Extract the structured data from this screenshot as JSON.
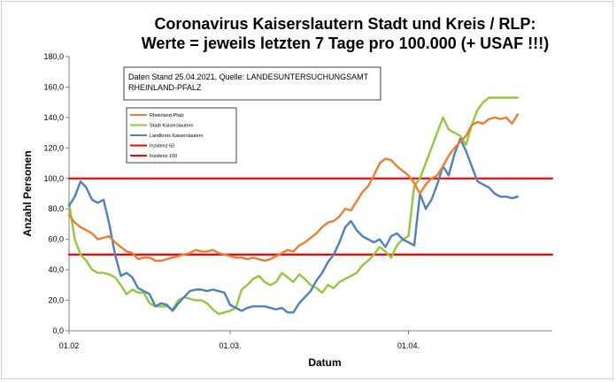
{
  "chart_data": {
    "type": "line",
    "title_lines": [
      "Coronavirus Kaiserslautern Stadt und Kreis / RLP:",
      "Werte = jeweils letzten 7 Tage pro 100.000 (+ USAF !!!)"
    ],
    "xlabel": "Datum",
    "ylabel": "Anzahl Personen",
    "ylim": [
      0,
      180
    ],
    "yticks": [
      "0,0",
      "20,0",
      "40,0",
      "60,0",
      "80,0",
      "100,0",
      "120,0",
      "140,0",
      "160,0",
      "180,0"
    ],
    "x_range_days": [
      0,
      84
    ],
    "xticks": [
      {
        "label": "01.02",
        "day": 0
      },
      {
        "label": "01.03.",
        "day": 28
      },
      {
        "label": "01.04.",
        "day": 59
      }
    ],
    "source_note_lines": [
      "Daten Stand 25.04.2021, Quelle: LANDESUNTERSUCHUNGSAMT",
      "RHEINLAND-PFALZ"
    ],
    "legend_position": "upper-left",
    "series": [
      {
        "name": "Rheinland-Pfalz",
        "color": "#ed7d31",
        "x": [
          0,
          1,
          2,
          3,
          4,
          5,
          6,
          7,
          8,
          9,
          10,
          11,
          12,
          13,
          14,
          15,
          16,
          17,
          18,
          19,
          20,
          21,
          22,
          23,
          24,
          25,
          26,
          27,
          28,
          29,
          30,
          31,
          32,
          33,
          34,
          35,
          36,
          37,
          38,
          39,
          40,
          41,
          42,
          43,
          44,
          45,
          46,
          47,
          48,
          49,
          50,
          51,
          52,
          53,
          54,
          55,
          56,
          57,
          58,
          59,
          60,
          61,
          62,
          63,
          64,
          65,
          66,
          67,
          68,
          69,
          70,
          71,
          72,
          73,
          74,
          75,
          76,
          77,
          78
        ],
        "y": [
          76,
          71,
          68,
          66,
          64,
          60,
          61,
          62,
          58,
          55,
          52,
          51,
          47,
          48,
          48,
          46,
          46,
          47,
          48,
          49,
          50,
          51,
          53,
          52,
          52,
          53,
          51,
          50,
          49,
          48,
          48,
          47,
          48,
          47,
          46,
          47,
          49,
          51,
          53,
          52,
          56,
          58,
          61,
          64,
          68,
          71,
          72,
          75,
          80,
          79,
          85,
          91,
          95,
          102,
          110,
          113,
          112,
          108,
          105,
          102,
          97,
          90,
          96,
          100,
          102,
          108,
          115,
          120,
          124,
          128,
          135,
          137,
          136,
          139,
          140,
          139,
          140,
          136,
          142
        ]
      },
      {
        "name": "Stadt Kaiserslautern",
        "color": "#92c83e",
        "x": [
          0,
          1,
          2,
          3,
          4,
          5,
          6,
          7,
          8,
          9,
          10,
          11,
          12,
          13,
          14,
          15,
          16,
          17,
          18,
          19,
          20,
          21,
          22,
          23,
          24,
          25,
          26,
          27,
          28,
          29,
          30,
          31,
          32,
          33,
          34,
          35,
          36,
          37,
          38,
          39,
          40,
          41,
          42,
          43,
          44,
          45,
          46,
          47,
          48,
          49,
          50,
          51,
          52,
          53,
          54,
          55,
          56,
          57,
          58,
          59,
          60,
          61,
          62,
          63,
          64,
          65,
          66,
          67,
          68,
          69,
          70,
          71,
          72,
          73,
          74,
          75,
          76,
          77,
          78
        ],
        "y": [
          84,
          60,
          50,
          46,
          40,
          38,
          38,
          37,
          35,
          30,
          24,
          27,
          25,
          25,
          18,
          16,
          16,
          16,
          14,
          20,
          22,
          21,
          20,
          20,
          18,
          14,
          11,
          12,
          13,
          15,
          27,
          30,
          34,
          36,
          32,
          30,
          32,
          38,
          35,
          32,
          37,
          34,
          30,
          28,
          25,
          30,
          28,
          32,
          34,
          36,
          38,
          43,
          46,
          50,
          55,
          52,
          48,
          56,
          60,
          62,
          95,
          100,
          110,
          120,
          130,
          140,
          132,
          130,
          128,
          122,
          135,
          145,
          150,
          153,
          153,
          153,
          153,
          153,
          153
        ]
      },
      {
        "name": "Landkreis Kaiserslautern",
        "color": "#4e80bd",
        "x": [
          0,
          1,
          2,
          3,
          4,
          5,
          6,
          7,
          8,
          9,
          10,
          11,
          12,
          13,
          14,
          15,
          16,
          17,
          18,
          19,
          20,
          21,
          22,
          23,
          24,
          25,
          26,
          27,
          28,
          29,
          30,
          31,
          32,
          33,
          34,
          35,
          36,
          37,
          38,
          39,
          40,
          41,
          42,
          43,
          44,
          45,
          46,
          47,
          48,
          49,
          50,
          51,
          52,
          53,
          54,
          55,
          56,
          57,
          58,
          59,
          60,
          61,
          62,
          63,
          64,
          65,
          66,
          67,
          68,
          69,
          70,
          71,
          72,
          73,
          74,
          75,
          76,
          77,
          78
        ],
        "y": [
          82,
          88,
          98,
          94,
          86,
          84,
          86,
          70,
          50,
          36,
          38,
          35,
          28,
          26,
          24,
          16,
          18,
          17,
          13,
          18,
          22,
          26,
          27,
          27,
          26,
          27,
          26,
          25,
          17,
          15,
          13,
          15,
          16,
          16,
          16,
          15,
          14,
          15,
          12,
          12,
          18,
          22,
          26,
          33,
          38,
          45,
          50,
          58,
          68,
          72,
          66,
          62,
          60,
          58,
          60,
          55,
          62,
          64,
          60,
          58,
          56,
          90,
          80,
          86,
          96,
          108,
          102,
          116,
          126,
          118,
          108,
          98,
          96,
          94,
          90,
          88,
          88,
          87,
          88
        ]
      },
      {
        "name": "Inzidenz 50",
        "color": "#ff0000",
        "x": [
          0,
          84
        ],
        "y": [
          50,
          50
        ]
      },
      {
        "name": "Inzidenz 100",
        "color": "#ff0000",
        "x": [
          0,
          84
        ],
        "y": [
          100,
          100
        ]
      }
    ]
  }
}
